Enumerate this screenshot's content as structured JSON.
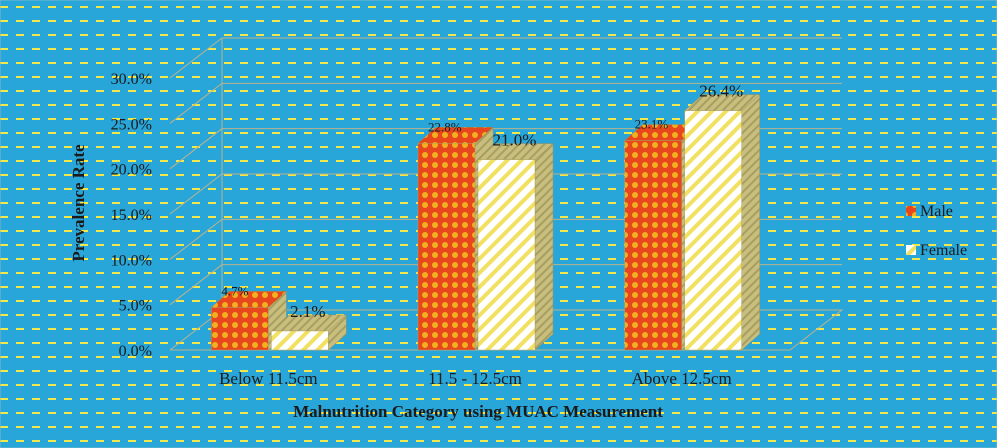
{
  "chart_data": {
    "type": "bar",
    "categories": [
      "Below 11.5cm",
      "11.5 - 12.5cm",
      "Above 12.5cm"
    ],
    "series": [
      {
        "name": "Male",
        "values": [
          4.7,
          22.8,
          23.1
        ],
        "labels": [
          "4.7%",
          "22.8%",
          "23.1%"
        ]
      },
      {
        "name": "Female",
        "values": [
          2.1,
          21.0,
          26.4
        ],
        "labels": [
          "2.1%",
          "21.0%",
          "26.4%"
        ]
      }
    ],
    "title": "",
    "xlabel": "Malnutrition Category using MUAC Measurement",
    "ylabel": "Prevalence Rate",
    "ylim": [
      0,
      30
    ],
    "yticks": [
      "0.0%",
      "5.0%",
      "10.0%",
      "15.0%",
      "20.0%",
      "25.0%",
      "30.0%"
    ],
    "grid": true,
    "three_d": true,
    "legend_position": "right",
    "colors": {
      "background": "#29A6D9",
      "background_stripe": "#F2E84A",
      "male": "#E8461C",
      "male_pattern": "#F0B020",
      "female": "#FFFFFF",
      "female_pattern": "#F2E060",
      "bar_side": "#C8BE7E",
      "grid": "#B9B38A",
      "text": "#1a1a1a"
    }
  }
}
